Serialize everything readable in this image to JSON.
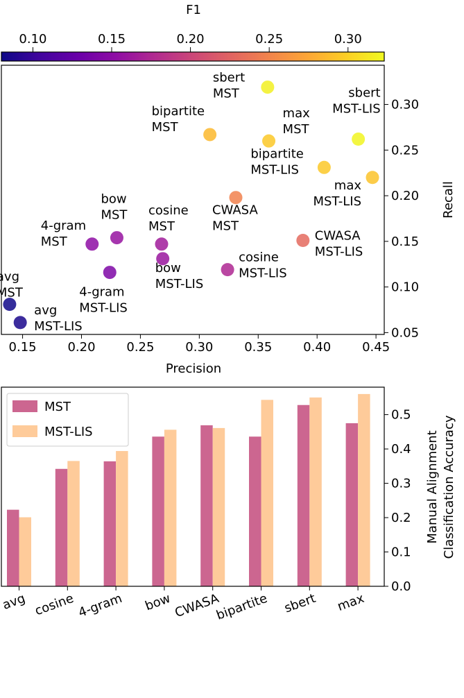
{
  "chart_data": [
    {
      "type": "scatter",
      "colorbar": {
        "title": "F1",
        "ticks": [
          "0.10",
          "0.15",
          "0.20",
          "0.25",
          "0.30"
        ],
        "range": [
          0.08,
          0.323
        ],
        "colormap": "plasma"
      },
      "xlabel": "Precision",
      "ylabel": "Recall",
      "xlim": [
        0.132,
        0.457
      ],
      "ylim": [
        0.048,
        0.343
      ],
      "xticks": [
        "0.15",
        "0.20",
        "0.25",
        "0.30",
        "0.35",
        "0.40",
        "0.45"
      ],
      "yticks": [
        "0.05",
        "0.10",
        "0.15",
        "0.20",
        "0.25",
        "0.30"
      ],
      "points": [
        {
          "method": "avg",
          "variant": "MST",
          "precision": 0.139,
          "recall": 0.081,
          "f1": 0.082
        },
        {
          "method": "avg",
          "variant": "MST-LIS",
          "precision": 0.148,
          "recall": 0.061,
          "f1": 0.086
        },
        {
          "method": "4-gram",
          "variant": "MST",
          "precision": 0.209,
          "recall": 0.147,
          "f1": 0.152
        },
        {
          "method": "4-gram",
          "variant": "MST-LIS",
          "precision": 0.224,
          "recall": 0.116,
          "f1": 0.142
        },
        {
          "method": "bow",
          "variant": "MST",
          "precision": 0.23,
          "recall": 0.154,
          "f1": 0.158
        },
        {
          "method": "bow",
          "variant": "MST-LIS",
          "precision": 0.269,
          "recall": 0.131,
          "f1": 0.16
        },
        {
          "method": "cosine",
          "variant": "MST",
          "precision": 0.268,
          "recall": 0.147,
          "f1": 0.165
        },
        {
          "method": "cosine",
          "variant": "MST-LIS",
          "precision": 0.324,
          "recall": 0.119,
          "f1": 0.175
        },
        {
          "method": "CWASA",
          "variant": "MST",
          "precision": 0.331,
          "recall": 0.198,
          "f1": 0.248
        },
        {
          "method": "CWASA",
          "variant": "MST-LIS",
          "precision": 0.388,
          "recall": 0.151,
          "f1": 0.23
        },
        {
          "method": "bipartite",
          "variant": "MST",
          "precision": 0.309,
          "recall": 0.267,
          "f1": 0.286
        },
        {
          "method": "bipartite",
          "variant": "MST-LIS",
          "precision": 0.406,
          "recall": 0.231,
          "f1": 0.295
        },
        {
          "method": "sbert",
          "variant": "MST",
          "precision": 0.358,
          "recall": 0.319,
          "f1": 0.318
        },
        {
          "method": "sbert",
          "variant": "MST-LIS",
          "precision": 0.435,
          "recall": 0.262,
          "f1": 0.32
        },
        {
          "method": "max",
          "variant": "MST",
          "precision": 0.359,
          "recall": 0.26,
          "f1": 0.295
        },
        {
          "method": "max",
          "variant": "MST-LIS",
          "precision": 0.447,
          "recall": 0.22,
          "f1": 0.292
        }
      ]
    },
    {
      "type": "bar",
      "categories": [
        "avg",
        "cosine",
        "4-gram",
        "bow",
        "CWASA",
        "bipartite",
        "sbert",
        "max"
      ],
      "series": [
        {
          "name": "MST",
          "color": "#cc6690",
          "values": [
            0.223,
            0.342,
            0.364,
            0.436,
            0.469,
            0.436,
            0.528,
            0.475
          ]
        },
        {
          "name": "MST-LIS",
          "color": "#fecb9a",
          "values": [
            0.201,
            0.365,
            0.394,
            0.456,
            0.461,
            0.543,
            0.55,
            0.56
          ]
        }
      ],
      "ylabel_lines": [
        "Manual Alignment",
        "Classification Accuracy"
      ],
      "ylim": [
        0,
        0.58
      ],
      "yticks": [
        "0.0",
        "0.1",
        "0.2",
        "0.3",
        "0.4",
        "0.5"
      ],
      "legend": "top-left"
    }
  ]
}
